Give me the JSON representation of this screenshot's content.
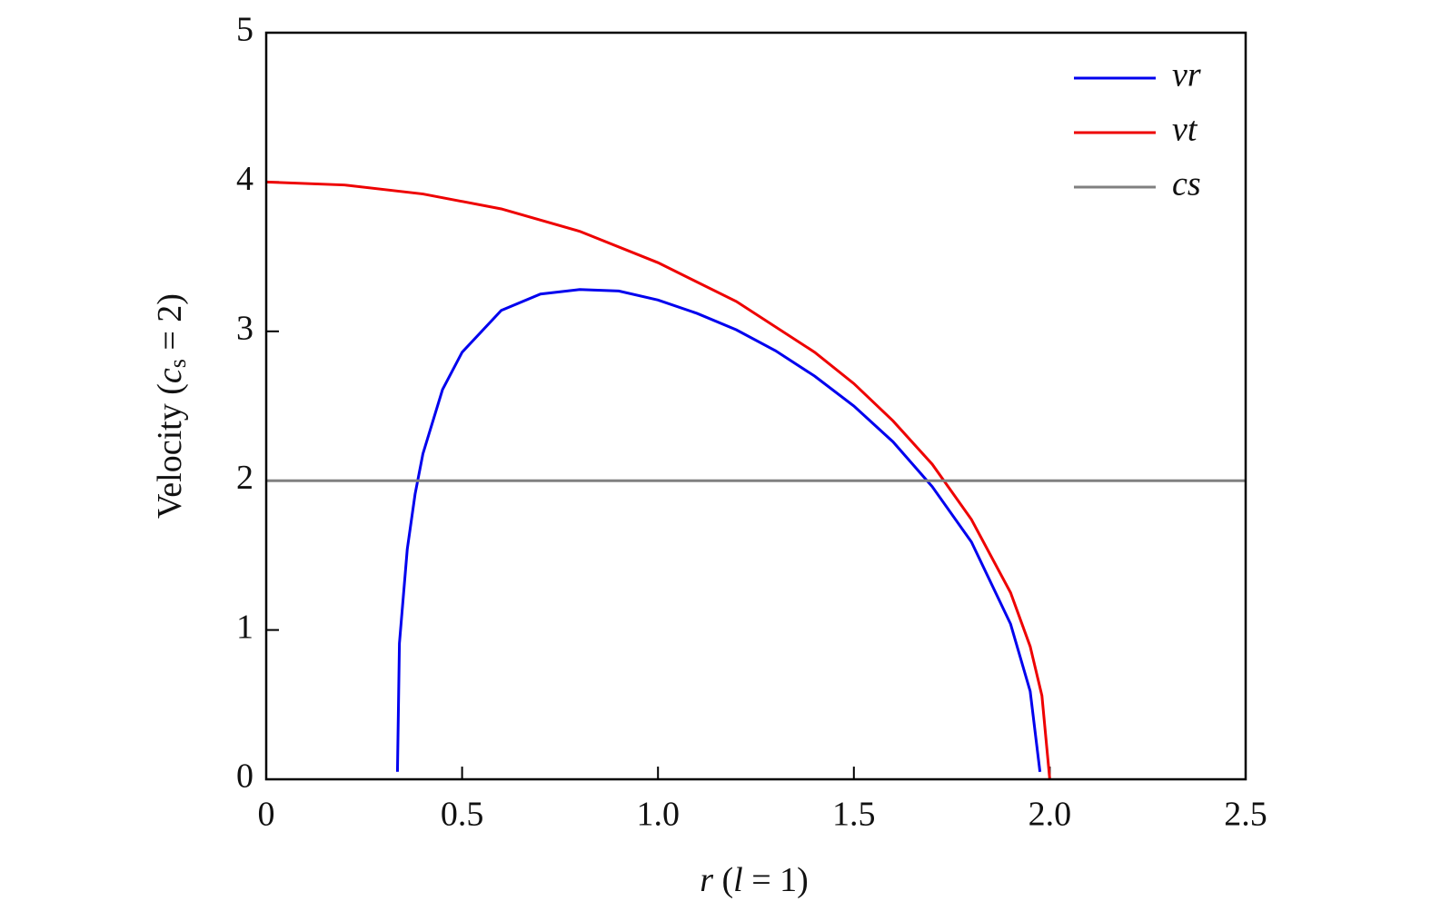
{
  "chart_data": {
    "type": "line",
    "xlabel": [
      "r",
      " (",
      "l",
      " = 1)"
    ],
    "ylabel": [
      "Velocity (",
      "c",
      "s",
      " = 2)"
    ],
    "xlim": [
      0,
      2.5
    ],
    "xticks": [
      0,
      0.5,
      {
        "value": 1,
        "label": "1.0"
      },
      1.5,
      {
        "value": 2,
        "label": "2.0"
      },
      2.5
    ],
    "ylim": [
      0,
      5
    ],
    "yticks": [
      0,
      1,
      2,
      3,
      4,
      5
    ],
    "legend": "upper right",
    "series": [
      {
        "name": "vr",
        "color": "#0000ee",
        "x": [
          0.335,
          0.34,
          0.36,
          0.38,
          0.4,
          0.45,
          0.5,
          0.6,
          0.7,
          0.8,
          0.9,
          1.0,
          1.1,
          1.2,
          1.3,
          1.4,
          1.5,
          1.6,
          1.7,
          1.8,
          1.9,
          1.95,
          1.975
        ],
        "values": [
          0.05,
          0.91,
          1.54,
          1.91,
          2.18,
          2.61,
          2.86,
          3.14,
          3.25,
          3.28,
          3.27,
          3.21,
          3.12,
          3.01,
          2.87,
          2.7,
          2.5,
          2.26,
          1.96,
          1.59,
          1.04,
          0.59,
          0.05
        ]
      },
      {
        "name": "vt",
        "color": "#ee0000",
        "x": [
          0,
          0.2,
          0.4,
          0.6,
          0.8,
          1.0,
          1.2,
          1.4,
          1.5,
          1.6,
          1.7,
          1.8,
          1.9,
          1.95,
          1.98,
          2.0
        ],
        "values": [
          4,
          3.98,
          3.92,
          3.82,
          3.67,
          3.46,
          3.2,
          2.86,
          2.65,
          2.4,
          2.11,
          1.74,
          1.25,
          0.89,
          0.56,
          0
        ]
      },
      {
        "name": "cs",
        "color": "#808080",
        "x": [
          0,
          2.5
        ],
        "values": [
          2,
          2
        ]
      }
    ]
  }
}
